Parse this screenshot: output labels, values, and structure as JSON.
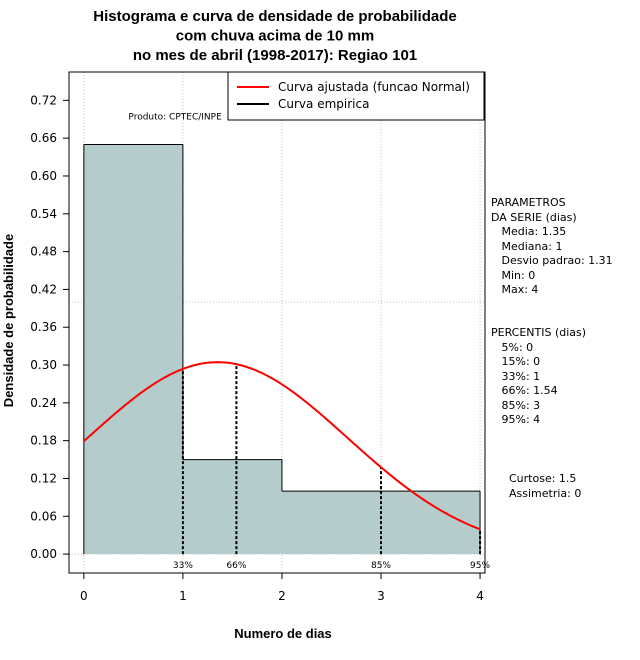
{
  "chart_data": {
    "type": "bar",
    "title_lines": [
      "Histograma e curva de densidade de probabilidade",
      "com chuva acima de 10 mm",
      "no mes de abril (1998-2017): Regiao 101"
    ],
    "xlabel": "Numero de dias",
    "ylabel": "Densidade de probabilidade",
    "xlim": [
      -0.15,
      4.05
    ],
    "ylim": [
      -0.03,
      0.765
    ],
    "x_ticks": [
      "0",
      "1",
      "2",
      "3",
      "4"
    ],
    "y_ticks": [
      "0.00",
      "0.06",
      "0.12",
      "0.18",
      "0.24",
      "0.30",
      "0.36",
      "0.42",
      "0.48",
      "0.54",
      "0.60",
      "0.66",
      "0.72"
    ],
    "bins": [
      {
        "from": 0,
        "to": 1,
        "density": 0.65
      },
      {
        "from": 1,
        "to": 2,
        "density": 0.15
      },
      {
        "from": 2,
        "to": 3,
        "density": 0.1
      },
      {
        "from": 3,
        "to": 4,
        "density": 0.1
      }
    ],
    "reference_line_y": 0.4,
    "fitted_curve": {
      "name": "Curva ajustada (funcao Normal)",
      "distribution": "normal",
      "mean": 1.35,
      "sd": 1.31,
      "color": "#ff0000"
    },
    "empirical_curve": {
      "name": "Curva empirica",
      "color": "#000000"
    },
    "percentile_markers": [
      {
        "label": "33%",
        "x": 1
      },
      {
        "label": "66%",
        "x": 1.54
      },
      {
        "label": "85%",
        "x": 3
      },
      {
        "label": "95%",
        "x": 4
      }
    ],
    "product_label": "Produto: CPTEC/INPE",
    "bar_color": "#b4cccc",
    "grid_color": "#c0c0c0"
  },
  "sidebar": {
    "params_lines": [
      "PARAMETROS",
      "DA SERIE (dias)",
      "   Media: 1.35",
      "   Mediana: 1",
      "   Desvio padrao: 1.31",
      "   Min: 0",
      "   Max: 4"
    ],
    "percentis_lines": [
      "PERCENTIS (dias)",
      "   5%: 0",
      "   15%: 0",
      "   33%: 1",
      "   66%: 1.54",
      "   85%: 3",
      "   95%: 4"
    ],
    "shape_lines": [
      "Curtose: 1.5",
      "Assimetria: 0"
    ]
  }
}
